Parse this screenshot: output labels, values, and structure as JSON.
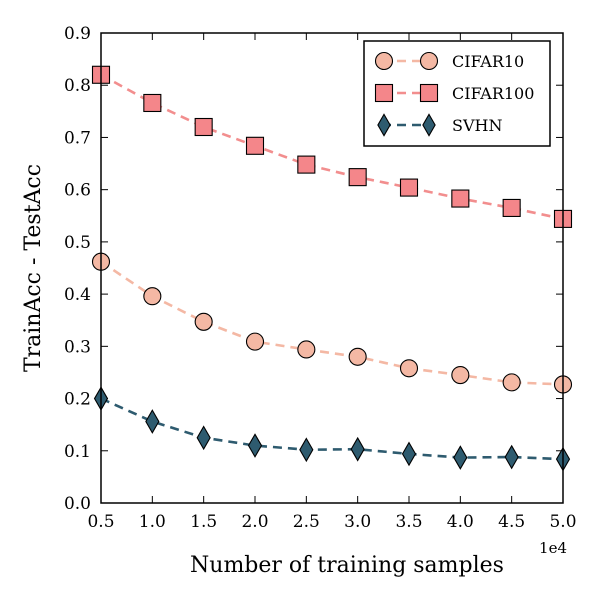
{
  "chart_data": {
    "type": "line",
    "title": "",
    "xlabel": "Number of training samples",
    "ylabel": "TrainAcc - TestAcc",
    "x_multiplier_label": "1e4",
    "x": [
      0.5,
      1.0,
      1.5,
      2.0,
      2.5,
      3.0,
      3.5,
      4.0,
      4.5,
      5.0
    ],
    "x_tick_labels": [
      "0.5",
      "1.0",
      "1.5",
      "2.0",
      "2.5",
      "3.0",
      "3.5",
      "4.0",
      "4.5",
      "5.0"
    ],
    "y_tick_labels": [
      "0.0",
      "0.1",
      "0.2",
      "0.3",
      "0.4",
      "0.5",
      "0.6",
      "0.7",
      "0.8",
      "0.9"
    ],
    "xlim": [
      0.5,
      5.0
    ],
    "ylim": [
      0.0,
      0.9
    ],
    "grid": false,
    "legend_position": "top-right",
    "series": [
      {
        "name": "CIFAR10",
        "marker": "circle",
        "line_color": "#f4b8a4",
        "marker_fill": "#f4b8a4",
        "values": [
          0.462,
          0.396,
          0.347,
          0.309,
          0.294,
          0.28,
          0.258,
          0.245,
          0.231,
          0.227
        ]
      },
      {
        "name": "CIFAR100",
        "marker": "square",
        "line_color": "#f28e8e",
        "marker_fill": "#f4868a",
        "values": [
          0.82,
          0.766,
          0.72,
          0.684,
          0.648,
          0.624,
          0.604,
          0.583,
          0.565,
          0.544
        ]
      },
      {
        "name": "SVHN",
        "marker": "diamond",
        "line_color": "#2e5b6f",
        "marker_fill": "#2e5b6f",
        "values": [
          0.2,
          0.156,
          0.125,
          0.11,
          0.102,
          0.103,
          0.094,
          0.087,
          0.088,
          0.084
        ]
      }
    ]
  }
}
